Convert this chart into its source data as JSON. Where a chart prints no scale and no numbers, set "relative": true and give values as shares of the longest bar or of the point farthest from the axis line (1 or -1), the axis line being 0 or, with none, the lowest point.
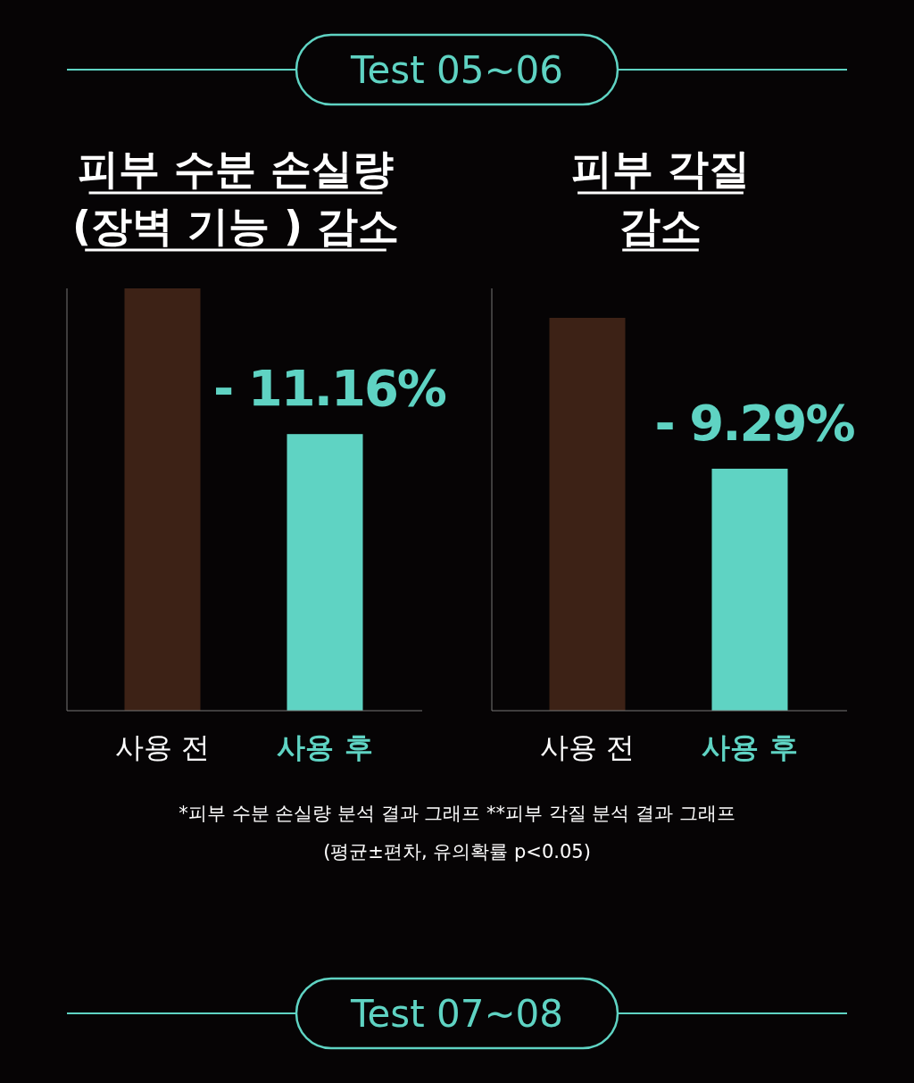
{
  "chart_data": [
    {
      "type": "other",
      "title": "Test 05~06"
    },
    {
      "type": "bar",
      "title": "피부 수분 손실량\n(장벽 기능 ) 감소",
      "categories": [
        "사용 전",
        "사용 후"
      ],
      "values": [
        1,
        0.655
      ],
      "colors": [
        "#3d2216",
        "#5fd3c3"
      ],
      "relative": true,
      "annotations": [
        {
          "text": "- 11.16%",
          "x": "사용 후",
          "y": 0.655
        }
      ]
    },
    {
      "type": "bar",
      "title": "피부 각질\n감소",
      "categories": [
        "사용 전",
        "사용 후"
      ],
      "values": [
        1,
        0.616
      ],
      "colors": [
        "#3d2216",
        "#5fd3c3"
      ],
      "relative": true,
      "annotations": [
        {
          "text": "- 9.29%",
          "x": "사용 후",
          "y": 0.616
        }
      ]
    },
    {
      "type": "other",
      "annotations": [
        "*피부  수분 손실량 분석 결과 그래프 **피부 각질 분석 결과 그래프",
        "(평균±편차, 유의확률 p<0.05)"
      ]
    },
    {
      "type": "other",
      "title": "Test 07~08"
    }
  ]
}
